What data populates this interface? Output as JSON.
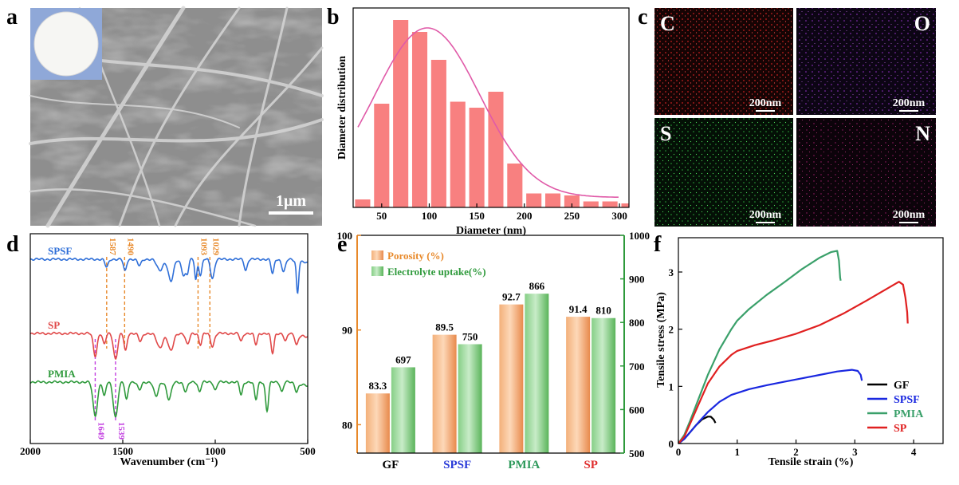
{
  "panel_labels": [
    "a",
    "b",
    "c",
    "d",
    "e",
    "f"
  ],
  "panel_a": {
    "scale_bar": "1μm"
  },
  "panel_c": {
    "maps": [
      {
        "element": "C",
        "scale": "200nm",
        "color": "#ff2a2a"
      },
      {
        "element": "O",
        "scale": "200nm",
        "color": "#c040ff"
      },
      {
        "element": "S",
        "scale": "200nm",
        "color": "#2ecc40"
      },
      {
        "element": "N",
        "scale": "200nm",
        "color": "#b8207a"
      }
    ]
  },
  "chart_data": [
    {
      "id": "b",
      "type": "bar",
      "xlabel": "Diameter (nm)",
      "ylabel": "Diameter distribution",
      "x_ticks": [
        "50",
        "100",
        "150",
        "200",
        "250",
        "300"
      ],
      "xlim": [
        20,
        310
      ],
      "ylim": [
        0,
        100
      ],
      "bar_centers": [
        30,
        50,
        70,
        90,
        110,
        130,
        150,
        170,
        190,
        210,
        230,
        250,
        270,
        290,
        310
      ],
      "bar_width": 16,
      "values": [
        4,
        52,
        94,
        88,
        74,
        53,
        50,
        58,
        22,
        7,
        7,
        6,
        3,
        3,
        2
      ],
      "fit": {
        "mean": 98,
        "sigma": 55,
        "amplitude": 85,
        "offset": 5,
        "from": 25,
        "to": 300
      },
      "colors": {
        "bar": "#f88080",
        "fit": "#e05aa8"
      }
    },
    {
      "id": "d",
      "type": "line",
      "xlabel": "Wavenumber (cm⁻¹)",
      "x_ticks": [
        "2000",
        "1500",
        "1000",
        "500"
      ],
      "xlim": [
        2000,
        500
      ],
      "series": [
        {
          "name": "SPSF",
          "color": "#2f6fd8",
          "baseline": 35,
          "peaks": [
            [
              1587,
              10,
              9
            ],
            [
              1488,
              15,
              8
            ],
            [
              1410,
              8,
              10
            ],
            [
              1300,
              14,
              16
            ],
            [
              1240,
              28,
              14
            ],
            [
              1170,
              20,
              12
            ],
            [
              1150,
              14,
              7
            ],
            [
              1105,
              25,
              6
            ],
            [
              1080,
              20,
              8
            ],
            [
              1015,
              24,
              10
            ],
            [
              835,
              14,
              8
            ],
            [
              690,
              18,
              8
            ],
            [
              630,
              15,
              10
            ],
            [
              555,
              40,
              6
            ]
          ]
        },
        {
          "name": "SP",
          "color": "#e04848",
          "baseline": 35,
          "peaks": [
            [
              1649,
              28,
              10
            ],
            [
              1600,
              14,
              8
            ],
            [
              1539,
              32,
              11
            ],
            [
              1485,
              22,
              8
            ],
            [
              1405,
              10,
              10
            ],
            [
              1300,
              18,
              16
            ],
            [
              1240,
              22,
              14
            ],
            [
              1150,
              14,
              10
            ],
            [
              1080,
              14,
              8
            ],
            [
              1015,
              16,
              10
            ],
            [
              860,
              10,
              8
            ],
            [
              780,
              14,
              8
            ],
            [
              690,
              25,
              8
            ],
            [
              620,
              10,
              8
            ],
            [
              560,
              12,
              8
            ]
          ]
        },
        {
          "name": "PMIA",
          "color": "#2f9a3c",
          "baseline": 35,
          "peaks": [
            [
              1649,
              42,
              12
            ],
            [
              1600,
              18,
              8
            ],
            [
              1539,
              44,
              12
            ],
            [
              1480,
              22,
              8
            ],
            [
              1410,
              10,
              10
            ],
            [
              1320,
              18,
              12
            ],
            [
              1250,
              22,
              12
            ],
            [
              1160,
              12,
              10
            ],
            [
              1085,
              12,
              8
            ],
            [
              1000,
              10,
              8
            ],
            [
              860,
              16,
              8
            ],
            [
              780,
              22,
              8
            ],
            [
              720,
              36,
              8
            ],
            [
              640,
              12,
              8
            ],
            [
              560,
              10,
              8
            ]
          ]
        }
      ],
      "markers": [
        {
          "wavenumber": 1587,
          "label": "1587",
          "color": "#e8892a",
          "position": "top"
        },
        {
          "wavenumber": 1490,
          "label": "1490",
          "color": "#e8892a",
          "position": "top"
        },
        {
          "wavenumber": 1093,
          "label": "1093",
          "color": "#e8892a",
          "position": "top"
        },
        {
          "wavenumber": 1029,
          "label": "1029",
          "color": "#e8892a",
          "position": "top"
        },
        {
          "wavenumber": 1649,
          "label": "1649",
          "color": "#c23ee0",
          "position": "bottom"
        },
        {
          "wavenumber": 1539,
          "label": "1539",
          "color": "#c23ee0",
          "position": "bottom"
        }
      ]
    },
    {
      "id": "e",
      "type": "bar",
      "categories": [
        "GF",
        "SPSF",
        "PMIA",
        "SP"
      ],
      "category_colors": [
        "#000000",
        "#2a3bd8",
        "#2f9a5c",
        "#e03030"
      ],
      "series": [
        {
          "name": "Porosity (%)",
          "values": [
            83.3,
            89.5,
            92.7,
            91.4
          ],
          "axis": "left",
          "color": "#f0a060"
        },
        {
          "name": "Electrolyte uptake(%)",
          "values": [
            697,
            750,
            866,
            810
          ],
          "axis": "right",
          "color": "#80cc80"
        }
      ],
      "ylim_left": [
        77,
        100
      ],
      "ylim_right": [
        500,
        1000
      ],
      "y_ticks_left": [
        "80",
        "90",
        "100"
      ],
      "y_ticks_right": [
        "500",
        "600",
        "700",
        "800",
        "900",
        "1000"
      ],
      "colors": {
        "left_axis": "#e8892a",
        "right_axis": "#2f9a3c"
      }
    },
    {
      "id": "f",
      "type": "line",
      "xlabel": "Tensile strain (%)",
      "ylabel": "Tensile stress (MPa)",
      "xlim": [
        0,
        4.5
      ],
      "ylim": [
        0,
        3.6
      ],
      "x_ticks": [
        "0",
        "1",
        "2",
        "3",
        "4"
      ],
      "y_ticks": [
        "0",
        "1",
        "2",
        "3"
      ],
      "series": [
        {
          "name": "GF",
          "color": "#000000",
          "x": [
            0,
            0.1,
            0.2,
            0.3,
            0.4,
            0.5,
            0.55,
            0.6,
            0.63
          ],
          "y": [
            0,
            0.08,
            0.2,
            0.32,
            0.42,
            0.47,
            0.47,
            0.42,
            0.36
          ]
        },
        {
          "name": "SPSF",
          "color": "#1a28e0",
          "x": [
            0,
            0.1,
            0.2,
            0.35,
            0.5,
            0.7,
            0.9,
            1.2,
            1.5,
            1.8,
            2.1,
            2.4,
            2.7,
            2.95,
            3.05,
            3.1,
            3.12
          ],
          "y": [
            0,
            0.08,
            0.2,
            0.38,
            0.55,
            0.73,
            0.85,
            0.95,
            1.02,
            1.08,
            1.14,
            1.2,
            1.26,
            1.29,
            1.27,
            1.2,
            1.1
          ]
        },
        {
          "name": "PMIA",
          "color": "#3aa06a",
          "x": [
            0,
            0.1,
            0.2,
            0.35,
            0.5,
            0.7,
            0.9,
            1.0,
            1.2,
            1.5,
            1.8,
            2.1,
            2.4,
            2.6,
            2.7,
            2.73,
            2.75,
            2.76
          ],
          "y": [
            0,
            0.15,
            0.4,
            0.8,
            1.2,
            1.65,
            2.0,
            2.15,
            2.35,
            2.6,
            2.82,
            3.05,
            3.25,
            3.35,
            3.37,
            3.2,
            2.9,
            2.85
          ]
        },
        {
          "name": "SP",
          "color": "#e02020",
          "x": [
            0,
            0.1,
            0.2,
            0.35,
            0.5,
            0.7,
            0.9,
            1.0,
            1.3,
            1.6,
            2.0,
            2.4,
            2.8,
            3.2,
            3.5,
            3.75,
            3.82,
            3.86,
            3.89,
            3.9
          ],
          "y": [
            0,
            0.12,
            0.35,
            0.7,
            1.05,
            1.35,
            1.55,
            1.62,
            1.72,
            1.8,
            1.92,
            2.07,
            2.27,
            2.5,
            2.68,
            2.83,
            2.78,
            2.55,
            2.3,
            2.1
          ]
        }
      ],
      "legend": "bottom-right"
    }
  ]
}
